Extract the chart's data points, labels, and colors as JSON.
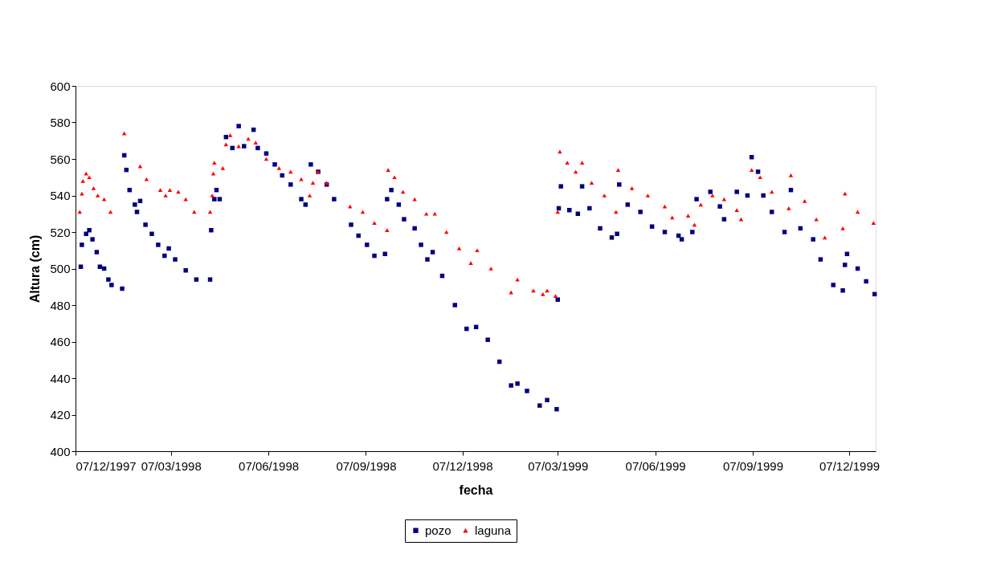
{
  "chart_data": {
    "type": "scatter",
    "xlabel": "fecha",
    "ylabel": "Altura (cm)",
    "xlim": [
      "1997-12-07",
      "2000-01-01"
    ],
    "xticks": [
      {
        "value": "1997-12-07",
        "label": "07/12/1997"
      },
      {
        "value": "1998-03-07",
        "label": "07/03/1998"
      },
      {
        "value": "1998-06-07",
        "label": "07/06/1998"
      },
      {
        "value": "1998-09-07",
        "label": "07/09/1998"
      },
      {
        "value": "1998-12-07",
        "label": "07/12/1998"
      },
      {
        "value": "1999-03-07",
        "label": "07/03/1999"
      },
      {
        "value": "1999-06-07",
        "label": "07/06/1999"
      },
      {
        "value": "1999-09-07",
        "label": "07/09/1999"
      },
      {
        "value": "1999-12-07",
        "label": "07/12/1999"
      }
    ],
    "ylim": [
      400,
      600
    ],
    "yticks": [
      400,
      420,
      440,
      460,
      480,
      500,
      520,
      540,
      560,
      580,
      600
    ],
    "grid": false,
    "legend": "bottom",
    "series": [
      {
        "name": "pozo",
        "color": "#000080",
        "marker": "square",
        "x": [
          "1997-12-12",
          "1997-12-13",
          "1997-12-17",
          "1997-12-20",
          "1997-12-23",
          "1997-12-27",
          "1997-12-30",
          "1998-01-03",
          "1998-01-07",
          "1998-01-10",
          "1998-01-20",
          "1998-01-22",
          "1998-01-24",
          "1998-01-27",
          "1998-02-01",
          "1998-02-03",
          "1998-02-06",
          "1998-02-11",
          "1998-02-17",
          "1998-02-23",
          "1998-03-01",
          "1998-03-05",
          "1998-03-11",
          "1998-03-21",
          "1998-03-31",
          "1998-04-13",
          "1998-04-14",
          "1998-04-17",
          "1998-04-19",
          "1998-04-22",
          "1998-04-28",
          "1998-05-04",
          "1998-05-10",
          "1998-05-15",
          "1998-05-24",
          "1998-05-28",
          "1998-06-05",
          "1998-06-13",
          "1998-06-20",
          "1998-06-28",
          "1998-07-08",
          "1998-07-12",
          "1998-07-17",
          "1998-07-24",
          "1998-08-01",
          "1998-08-08",
          "1998-08-24",
          "1998-08-31",
          "1998-09-08",
          "1998-09-15",
          "1998-09-25",
          "1998-09-27",
          "1998-10-01",
          "1998-10-08",
          "1998-10-13",
          "1998-10-23",
          "1998-10-29",
          "1998-11-04",
          "1998-11-09",
          "1998-11-18",
          "1998-11-30",
          "1998-12-11",
          "1998-12-20",
          "1998-12-31",
          "1999-01-11",
          "1999-01-22",
          "1999-01-28",
          "1999-02-06",
          "1999-02-18",
          "1999-02-25",
          "1999-03-06",
          "1999-03-07",
          "1999-03-08",
          "1999-03-10",
          "1999-03-18",
          "1999-03-26",
          "1999-03-30",
          "1999-04-06",
          "1999-04-16",
          "1999-04-27",
          "1999-05-02",
          "1999-05-04",
          "1999-05-12",
          "1999-05-24",
          "1999-06-04",
          "1999-06-16",
          "1999-06-29",
          "1999-07-02",
          "1999-07-12",
          "1999-07-16",
          "1999-07-29",
          "1999-08-07",
          "1999-08-11",
          "1999-08-23",
          "1999-09-02",
          "1999-09-06",
          "1999-09-12",
          "1999-09-17",
          "1999-09-25",
          "1999-10-07",
          "1999-10-13",
          "1999-10-22",
          "1999-11-03",
          "1999-11-10",
          "1999-11-22",
          "1999-12-01",
          "1999-12-03",
          "1999-12-05",
          "1999-12-15",
          "1999-12-23",
          "1999-12-31"
        ],
        "values": [
          501,
          513,
          519,
          521,
          516,
          509,
          501,
          500,
          494,
          491,
          489,
          562,
          554,
          543,
          535,
          531,
          537,
          524,
          519,
          513,
          507,
          511,
          505,
          499,
          494,
          494,
          521,
          538,
          543,
          538,
          572,
          566,
          578,
          567,
          576,
          566,
          563,
          557,
          551,
          546,
          538,
          535,
          557,
          553,
          546,
          538,
          524,
          518,
          513,
          507,
          508,
          538,
          543,
          535,
          527,
          522,
          513,
          505,
          509,
          496,
          480,
          467,
          468,
          461,
          449,
          436,
          437,
          433,
          425,
          428,
          423,
          483,
          533,
          545,
          532,
          530,
          545,
          533,
          522,
          517,
          519,
          546,
          535,
          531,
          523,
          520,
          518,
          516,
          520,
          538,
          542,
          534,
          527,
          542,
          540,
          561,
          553,
          540,
          531,
          520,
          543,
          522,
          516,
          505,
          491,
          488,
          502,
          508,
          500,
          493,
          486
        ]
      },
      {
        "name": "laguna",
        "color": "#ff0000",
        "marker": "triangle",
        "x": [
          "1997-12-11",
          "1997-12-13",
          "1997-12-14",
          "1997-12-17",
          "1997-12-20",
          "1997-12-24",
          "1997-12-28",
          "1998-01-03",
          "1998-01-09",
          "1998-01-22",
          "1998-02-06",
          "1998-02-12",
          "1998-02-25",
          "1998-03-02",
          "1998-03-06",
          "1998-03-14",
          "1998-03-21",
          "1998-03-29",
          "1998-04-13",
          "1998-04-15",
          "1998-04-16",
          "1998-04-17",
          "1998-04-25",
          "1998-04-28",
          "1998-05-02",
          "1998-05-10",
          "1998-05-19",
          "1998-05-26",
          "1998-06-05",
          "1998-06-17",
          "1998-06-28",
          "1998-07-08",
          "1998-07-16",
          "1998-07-19",
          "1998-07-24",
          "1998-08-01",
          "1998-08-23",
          "1998-09-04",
          "1998-09-15",
          "1998-09-27",
          "1998-09-28",
          "1998-10-04",
          "1998-10-12",
          "1998-10-23",
          "1998-11-03",
          "1998-11-11",
          "1998-11-22",
          "1998-12-04",
          "1998-12-15",
          "1998-12-21",
          "1999-01-03",
          "1999-01-22",
          "1999-01-28",
          "1999-02-12",
          "1999-02-21",
          "1999-02-25",
          "1999-03-05",
          "1999-03-07",
          "1999-03-09",
          "1999-03-16",
          "1999-03-24",
          "1999-03-30",
          "1999-04-08",
          "1999-04-20",
          "1999-05-01",
          "1999-05-03",
          "1999-05-16",
          "1999-05-31",
          "1999-06-16",
          "1999-06-23",
          "1999-07-08",
          "1999-07-14",
          "1999-07-20",
          "1999-07-31",
          "1999-08-11",
          "1999-08-23",
          "1999-08-27",
          "1999-09-06",
          "1999-09-14",
          "1999-09-25",
          "1999-10-11",
          "1999-10-13",
          "1999-10-26",
          "1999-11-06",
          "1999-11-14",
          "1999-12-01",
          "1999-12-03",
          "1999-12-15",
          "1999-12-30"
        ],
        "values": [
          531,
          541,
          548,
          552,
          550,
          544,
          540,
          538,
          531,
          574,
          556,
          549,
          543,
          540,
          543,
          542,
          538,
          531,
          531,
          540,
          552,
          558,
          555,
          568,
          573,
          567,
          571,
          569,
          560,
          555,
          553,
          549,
          540,
          547,
          553,
          547,
          534,
          531,
          525,
          521,
          554,
          550,
          542,
          538,
          530,
          530,
          520,
          511,
          503,
          510,
          500,
          487,
          494,
          488,
          486,
          488,
          485,
          531,
          564,
          558,
          553,
          558,
          547,
          540,
          531,
          554,
          544,
          540,
          534,
          528,
          529,
          524,
          535,
          540,
          538,
          532,
          527,
          554,
          550,
          542,
          533,
          551,
          537,
          527,
          517,
          522,
          541,
          531,
          525
        ]
      }
    ]
  }
}
